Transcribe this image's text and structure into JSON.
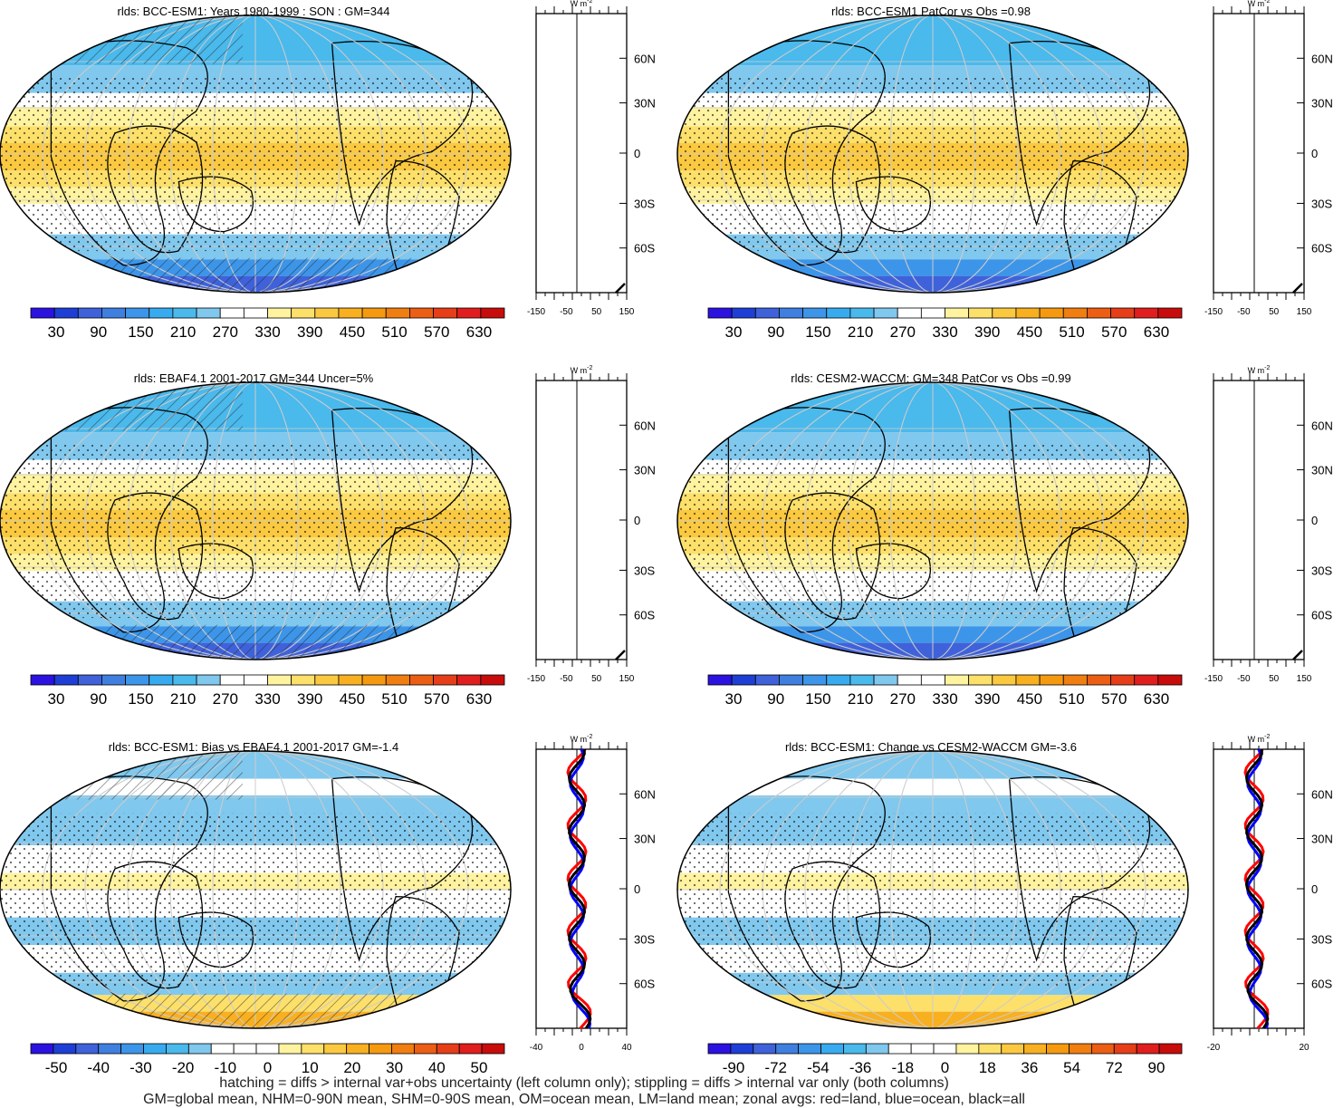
{
  "chart_data": [
    {
      "type": "heatmap",
      "title": "rlds: BCC-ESM1: Years 1980-1999 : SON : GM=344",
      "colorbar": {
        "ticks": [
          "30",
          "90",
          "150",
          "210",
          "270",
          "330",
          "390",
          "450",
          "510",
          "570",
          "630"
        ]
      },
      "zonal_profile": {
        "x_ticks": [
          "-150",
          "-50",
          "50",
          "150"
        ],
        "units": "W m-2",
        "lat_labels": [
          "60N",
          "30N",
          "0",
          "30S",
          "60S"
        ]
      }
    },
    {
      "type": "heatmap",
      "title": "rlds: BCC-ESM1 PatCor vs Obs =0.98",
      "colorbar": {
        "ticks": [
          "30",
          "90",
          "150",
          "210",
          "270",
          "330",
          "390",
          "450",
          "510",
          "570",
          "630"
        ]
      },
      "zonal_profile": {
        "x_ticks": [
          "-150",
          "-50",
          "50",
          "150"
        ],
        "units": "W m-2",
        "lat_labels": [
          "60N",
          "30N",
          "0",
          "30S",
          "60S"
        ]
      }
    },
    {
      "type": "heatmap",
      "title": "rlds: EBAF4.1 2001-2017 GM=344 Uncer=5%",
      "colorbar": {
        "ticks": [
          "30",
          "90",
          "150",
          "210",
          "270",
          "330",
          "390",
          "450",
          "510",
          "570",
          "630"
        ]
      },
      "zonal_profile": {
        "x_ticks": [
          "-150",
          "-50",
          "50",
          "150"
        ],
        "units": "W m-2",
        "lat_labels": [
          "60N",
          "30N",
          "0",
          "30S",
          "60S"
        ]
      }
    },
    {
      "type": "heatmap",
      "title": "rlds: CESM2-WACCM: GM=348 PatCor vs Obs =0.99",
      "colorbar": {
        "ticks": [
          "30",
          "90",
          "150",
          "210",
          "270",
          "330",
          "390",
          "450",
          "510",
          "570",
          "630"
        ]
      },
      "zonal_profile": {
        "x_ticks": [
          "-150",
          "-50",
          "50",
          "150"
        ],
        "units": "W m-2",
        "lat_labels": [
          "60N",
          "30N",
          "0",
          "30S",
          "60S"
        ]
      }
    },
    {
      "type": "heatmap",
      "title": "rlds: BCC-ESM1: Bias vs EBAF4.1 2001-2017  GM=-1.4",
      "colorbar": {
        "ticks": [
          "-50",
          "-40",
          "-30",
          "-20",
          "-10",
          "0",
          "10",
          "20",
          "30",
          "40",
          "50"
        ]
      },
      "zonal_profile": {
        "x_ticks": [
          "-40",
          "0",
          "40"
        ],
        "units": "W m-2",
        "lat_labels": [
          "60N",
          "30N",
          "0",
          "30S",
          "60S"
        ]
      }
    },
    {
      "type": "heatmap",
      "title": "rlds: BCC-ESM1: Change vs CESM2-WACCM GM=-3.6",
      "colorbar": {
        "ticks": [
          "-90",
          "-72",
          "-54",
          "-36",
          "-18",
          "0",
          "18",
          "36",
          "54",
          "72",
          "90"
        ]
      },
      "zonal_profile": {
        "x_ticks": [
          "-20",
          "20"
        ],
        "units": "W m-2",
        "lat_labels": [
          "60N",
          "30N",
          "0",
          "30S",
          "60S"
        ]
      }
    }
  ],
  "footer": {
    "line1": "hatching = diffs > internal var+obs uncertainty (left column only); stippling = diffs > internal var only (both columns)",
    "line2": "GM=global mean, NHM=0-90N mean, SHM=0-90S mean, OM=ocean mean, LM=land mean; zonal avgs: red=land, blue=ocean, black=all"
  }
}
